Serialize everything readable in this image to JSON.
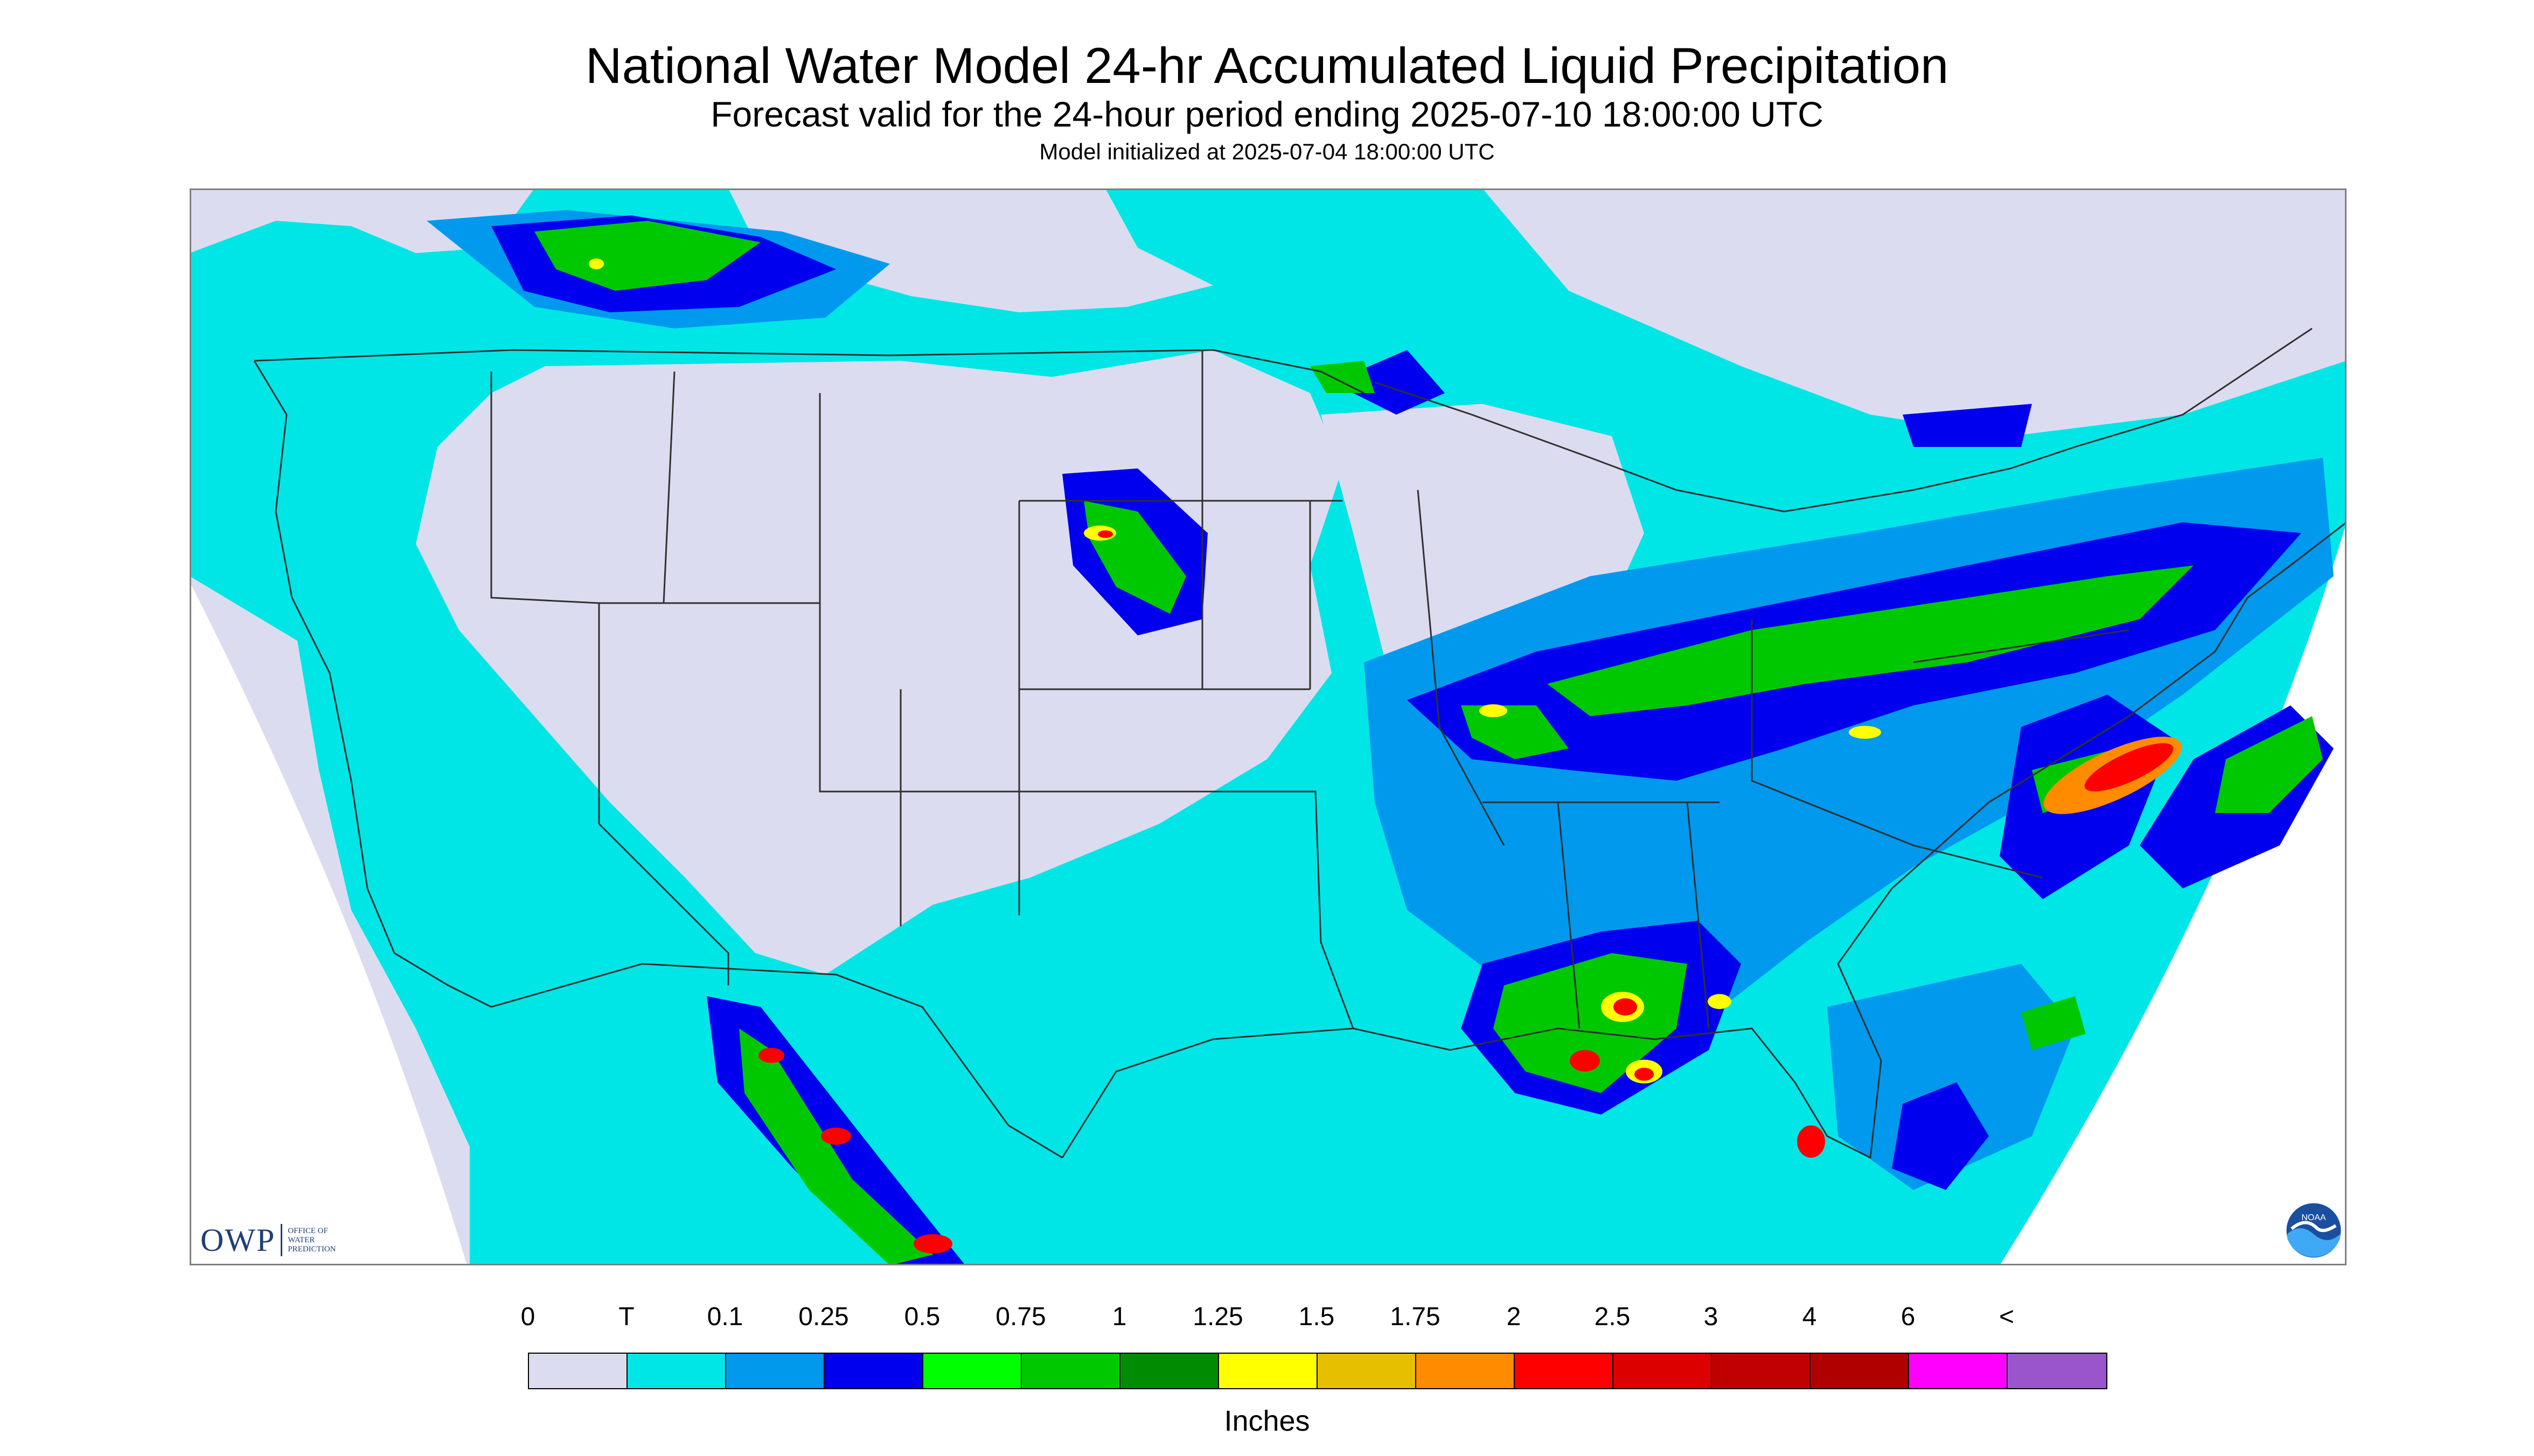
{
  "title": "National Water Model 24-hr Accumulated Liquid Precipitation",
  "subtitle": "Forecast valid for the 24-hour period ending 2025-07-10 18:00:00 UTC",
  "model_init": "Model initialized at 2025-07-04 18:00:00 UTC",
  "logos": {
    "owp_mark": "OWP",
    "owp_text": [
      "OFFICE OF",
      "WATER",
      "PREDICTION"
    ],
    "noaa": "NOAA"
  },
  "legend": {
    "labels": [
      "0",
      "T",
      "0.1",
      "0.25",
      "0.5",
      "0.75",
      "1",
      "1.25",
      "1.5",
      "1.75",
      "2",
      "2.5",
      "3",
      "4",
      "6",
      "<"
    ],
    "colors": [
      "#dcdcf0",
      "#00e6e6",
      "#0099ee",
      "#0000ee",
      "#00ff00",
      "#00c800",
      "#008c00",
      "#ffff00",
      "#e6c000",
      "#ff8c00",
      "#ff0000",
      "#dd0000",
      "#c00000",
      "#b00000",
      "#ff00ff",
      "#9955cc"
    ],
    "units": "Inches"
  },
  "colors": {
    "background": "#ffffff",
    "no_precip": "#dcdcf0",
    "trace": "#00e6e6",
    "light": "#0099ee",
    "moderate": "#0000ee",
    "heavy": "#00ff00",
    "very_heavy": "#00c800",
    "extreme": "#ff0000",
    "boundaries": "#303030"
  }
}
